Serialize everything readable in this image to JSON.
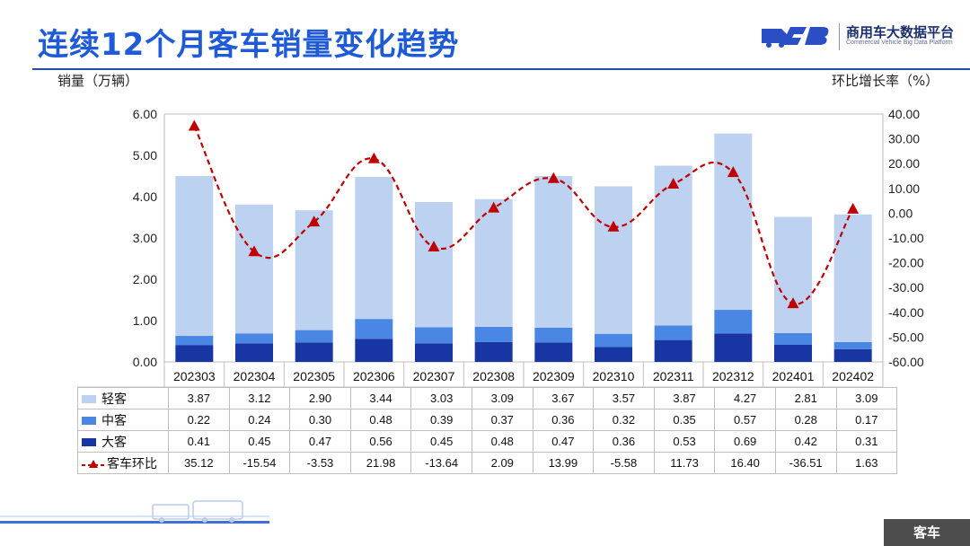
{
  "header": {
    "title": "连续12个月客车销量变化趋势",
    "logo_cn": "商用车大数据平台",
    "logo_en": "Commercial Vehicle Big Data Platform"
  },
  "footer": {
    "tag": "客车"
  },
  "colors": {
    "light": "#bdd1f1",
    "medium": "#4a86e3",
    "heavy": "#1836a3",
    "line": "#c00000",
    "title": "#1f5bd6"
  },
  "chart_data": {
    "type": "bar",
    "stacked": true,
    "y_left_label": "销量（万辆）",
    "y_right_label": "环比增长率（%）",
    "y_left_ticks": [
      "0.00",
      "1.00",
      "2.00",
      "3.00",
      "4.00",
      "5.00",
      "6.00"
    ],
    "y_right_ticks": [
      "-60.00",
      "-50.00",
      "-40.00",
      "-30.00",
      "-20.00",
      "-10.00",
      "0.00",
      "10.00",
      "20.00",
      "30.00",
      "40.00"
    ],
    "ylim_left": [
      0,
      6
    ],
    "ylim_right": [
      -60,
      40
    ],
    "categories": [
      "202303",
      "202304",
      "202305",
      "202306",
      "202307",
      "202308",
      "202309",
      "202310",
      "202311",
      "202312",
      "202401",
      "202402"
    ],
    "series": [
      {
        "name": "轻客",
        "type": "bar",
        "axis": "left",
        "values": [
          3.87,
          3.12,
          2.9,
          3.44,
          3.03,
          3.09,
          3.67,
          3.57,
          3.87,
          4.27,
          2.81,
          3.09
        ],
        "labels": [
          "3.87",
          "3.12",
          "2.90",
          "3.44",
          "3.03",
          "3.09",
          "3.67",
          "3.57",
          "3.87",
          "4.27",
          "2.81",
          "3.09"
        ]
      },
      {
        "name": "中客",
        "type": "bar",
        "axis": "left",
        "values": [
          0.22,
          0.24,
          0.3,
          0.48,
          0.39,
          0.37,
          0.36,
          0.32,
          0.35,
          0.57,
          0.28,
          0.17
        ],
        "labels": [
          "0.22",
          "0.24",
          "0.30",
          "0.48",
          "0.39",
          "0.37",
          "0.36",
          "0.32",
          "0.35",
          "0.57",
          "0.28",
          "0.17"
        ]
      },
      {
        "name": "大客",
        "type": "bar",
        "axis": "left",
        "values": [
          0.41,
          0.45,
          0.47,
          0.56,
          0.45,
          0.48,
          0.47,
          0.36,
          0.53,
          0.69,
          0.42,
          0.31
        ],
        "labels": [
          "0.41",
          "0.45",
          "0.47",
          "0.56",
          "0.45",
          "0.48",
          "0.47",
          "0.36",
          "0.53",
          "0.69",
          "0.42",
          "0.31"
        ]
      },
      {
        "name": "客车环比",
        "type": "line",
        "axis": "right",
        "values": [
          35.12,
          -15.54,
          -3.53,
          21.98,
          -13.64,
          2.09,
          13.99,
          -5.58,
          11.73,
          16.4,
          -36.51,
          1.63
        ],
        "labels": [
          "35.12",
          "-15.54",
          "-3.53",
          "21.98",
          "-13.64",
          "2.09",
          "13.99",
          "-5.58",
          "11.73",
          "16.40",
          "-36.51",
          "1.63"
        ]
      }
    ]
  }
}
